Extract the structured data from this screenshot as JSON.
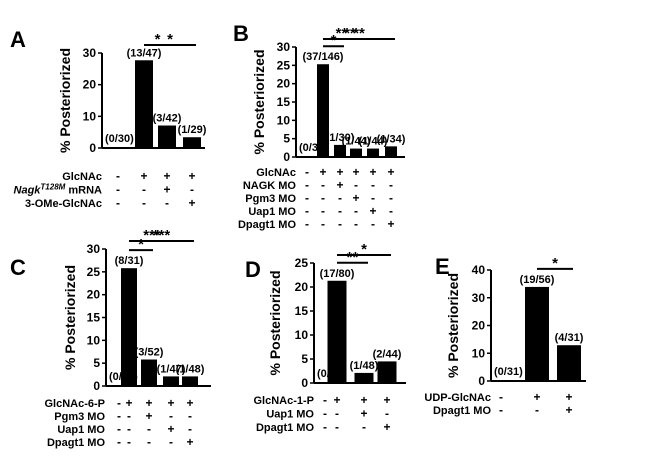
{
  "chart_data": [
    {
      "panel": "A",
      "type": "bar",
      "ylabel": "% Posteriorized",
      "ylim": [
        0,
        30
      ],
      "yticks": [
        0,
        10,
        20,
        30
      ],
      "values": [
        0,
        27.7,
        7.1,
        3.4
      ],
      "labels": [
        "(0/30)",
        "(13/47)",
        "(3/42)",
        "(1/29)"
      ],
      "conditions": [
        {
          "name": "GlcNAc",
          "signs": [
            "-",
            "+",
            "+",
            "+"
          ]
        },
        {
          "name": "Nagk",
          "sup": "T128M",
          "suffix": " mRNA",
          "signs": [
            "-",
            "-",
            "+",
            "-"
          ]
        },
        {
          "name": "3-OMe-GlcNAc",
          "signs": [
            "-",
            "-",
            "-",
            "+"
          ]
        }
      ],
      "significance": [
        {
          "from": 1,
          "to": 2,
          "stars": "*"
        },
        {
          "from": 1,
          "to": 3,
          "stars": "*"
        }
      ]
    },
    {
      "panel": "B",
      "type": "bar",
      "ylabel": "% Posteriorized",
      "ylim": [
        0,
        30
      ],
      "yticks": [
        0,
        5,
        10,
        15,
        20,
        25,
        30
      ],
      "values": [
        0,
        25.3,
        3.3,
        2.3,
        2.3,
        2.9
      ],
      "labels": [
        "(0/34)",
        "(37/146)",
        "(1/30)",
        "(1/44)",
        "(1/44)",
        "(1/34)"
      ],
      "conditions": [
        {
          "name": "GlcNAc",
          "signs": [
            "-",
            "+",
            "+",
            "+",
            "+",
            "+"
          ]
        },
        {
          "name": "NAGK MO",
          "signs": [
            "-",
            "-",
            "+",
            "-",
            "-",
            "-"
          ]
        },
        {
          "name": "Pgm3 MO",
          "signs": [
            "-",
            "-",
            "-",
            "+",
            "-",
            "-"
          ]
        },
        {
          "name": "Uap1 MO",
          "signs": [
            "-",
            "-",
            "-",
            "-",
            "+",
            "-"
          ]
        },
        {
          "name": "Dpagt1 MO",
          "signs": [
            "-",
            "-",
            "-",
            "-",
            "-",
            "+"
          ]
        }
      ],
      "significance": [
        {
          "from": 1,
          "to": 2,
          "stars": "*"
        },
        {
          "from": 1,
          "to": 3,
          "stars": "**"
        },
        {
          "from": 1,
          "to": 4,
          "stars": "**"
        },
        {
          "from": 1,
          "to": 5,
          "stars": "**"
        }
      ]
    },
    {
      "panel": "C",
      "type": "bar",
      "ylabel": "% Posteriorized",
      "ylim": [
        0,
        30
      ],
      "yticks": [
        0,
        5,
        10,
        15,
        20,
        25,
        30
      ],
      "values": [
        0,
        25.8,
        5.8,
        2.1,
        2.1
      ],
      "labels": [
        "(0/48)",
        "(8/31)",
        "(3/52)",
        "(1/47)",
        "(1/48)"
      ],
      "conditions": [
        {
          "name": "GlcNAc-6-P",
          "signs": [
            "-",
            "+",
            "+",
            "+",
            "+"
          ]
        },
        {
          "name": "Pgm3 MO",
          "signs": [
            "-",
            "-",
            "+",
            "-",
            "-"
          ]
        },
        {
          "name": "Uap1 MO",
          "signs": [
            "-",
            "-",
            "-",
            "+",
            "-"
          ]
        },
        {
          "name": "Dpagt1 MO",
          "signs": [
            "-",
            "-",
            "-",
            "-",
            "+"
          ]
        }
      ],
      "significance": [
        {
          "from": 1,
          "to": 2,
          "stars": "*"
        },
        {
          "from": 1,
          "to": 3,
          "stars": "***"
        },
        {
          "from": 1,
          "to": 4,
          "stars": "***"
        }
      ]
    },
    {
      "panel": "D",
      "type": "bar",
      "ylabel": "% Posteriorized",
      "ylim": [
        0,
        25
      ],
      "yticks": [
        0,
        5,
        10,
        15,
        20,
        25
      ],
      "values": [
        0,
        21.3,
        2.1,
        4.5
      ],
      "labels": [
        "(0/30)",
        "(17/80)",
        "(1/48)",
        "(2/44)"
      ],
      "conditions": [
        {
          "name": "GlcNAc-1-P",
          "signs": [
            "-",
            "+",
            "+",
            "+"
          ]
        },
        {
          "name": "Uap1 MO",
          "signs": [
            "-",
            "-",
            "+",
            "-"
          ]
        },
        {
          "name": "Dpagt1 MO",
          "signs": [
            "-",
            "-",
            "-",
            "+"
          ]
        }
      ],
      "significance": [
        {
          "from": 1,
          "to": 2,
          "stars": "**"
        },
        {
          "from": 1,
          "to": 3,
          "stars": "*"
        }
      ]
    },
    {
      "panel": "E",
      "type": "bar",
      "ylabel": "% Posteriorized",
      "ylim": [
        0,
        40
      ],
      "yticks": [
        0,
        10,
        20,
        30,
        40
      ],
      "values": [
        0,
        33.9,
        12.9
      ],
      "labels": [
        "(0/31)",
        "(19/56)",
        "(4/31)"
      ],
      "conditions": [
        {
          "name": "UDP-GlcNAc",
          "signs": [
            "-",
            "+",
            "+"
          ]
        },
        {
          "name": "Dpagt1 MO",
          "signs": [
            "-",
            "-",
            "+"
          ]
        }
      ],
      "significance": [
        {
          "from": 1,
          "to": 2,
          "stars": "*"
        }
      ]
    }
  ]
}
